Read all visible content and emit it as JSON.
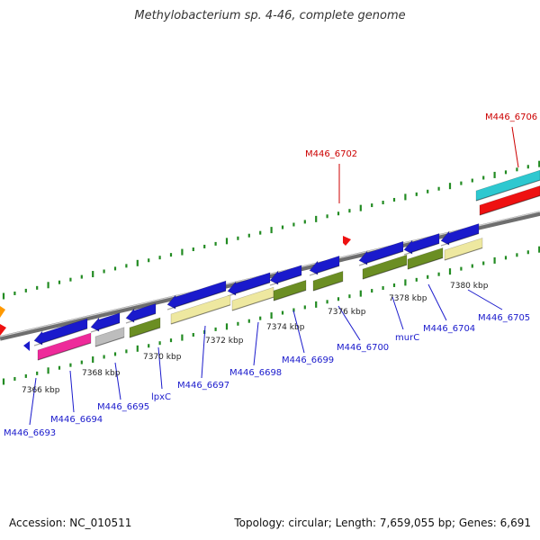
{
  "title": "Methylobacterium sp. 4-46, complete genome",
  "footer": {
    "accession": "Accession: NC_010511",
    "topology": "Topology: circular; Length: 7,659,055 bp; Genes: 6,691"
  },
  "colors": {
    "blue": "#1a1acc",
    "olive": "#6b8e23",
    "khaki": "#eee8a0",
    "gray": "#bdbdbd",
    "pink": "#ee2a9a",
    "cyan": "#2ec8d0",
    "red": "#ee1111",
    "orange": "#ff9900",
    "tick": "#228b22",
    "label_blue": "#1a1acc",
    "label_red": "#cc0000"
  },
  "scale_labels": [
    "7366 kbp",
    "7368 kbp",
    "7370 kbp",
    "7372 kbp",
    "7374 kbp",
    "7376 kbp",
    "7378 kbp",
    "7380 kbp"
  ],
  "gene_labels": [
    {
      "text": "M446_6693",
      "color": "blue"
    },
    {
      "text": "M446_6694",
      "color": "blue"
    },
    {
      "text": "M446_6695",
      "color": "blue"
    },
    {
      "text": "lpxC",
      "color": "blue"
    },
    {
      "text": "M446_6697",
      "color": "blue"
    },
    {
      "text": "M446_6698",
      "color": "blue"
    },
    {
      "text": "M446_6699",
      "color": "blue"
    },
    {
      "text": "M446_6700",
      "color": "blue"
    },
    {
      "text": "murC",
      "color": "blue"
    },
    {
      "text": "M446_6704",
      "color": "blue"
    },
    {
      "text": "M446_6705",
      "color": "blue"
    },
    {
      "text": "M446_6702",
      "color": "red"
    },
    {
      "text": "M446_6706",
      "color": "red"
    }
  ]
}
